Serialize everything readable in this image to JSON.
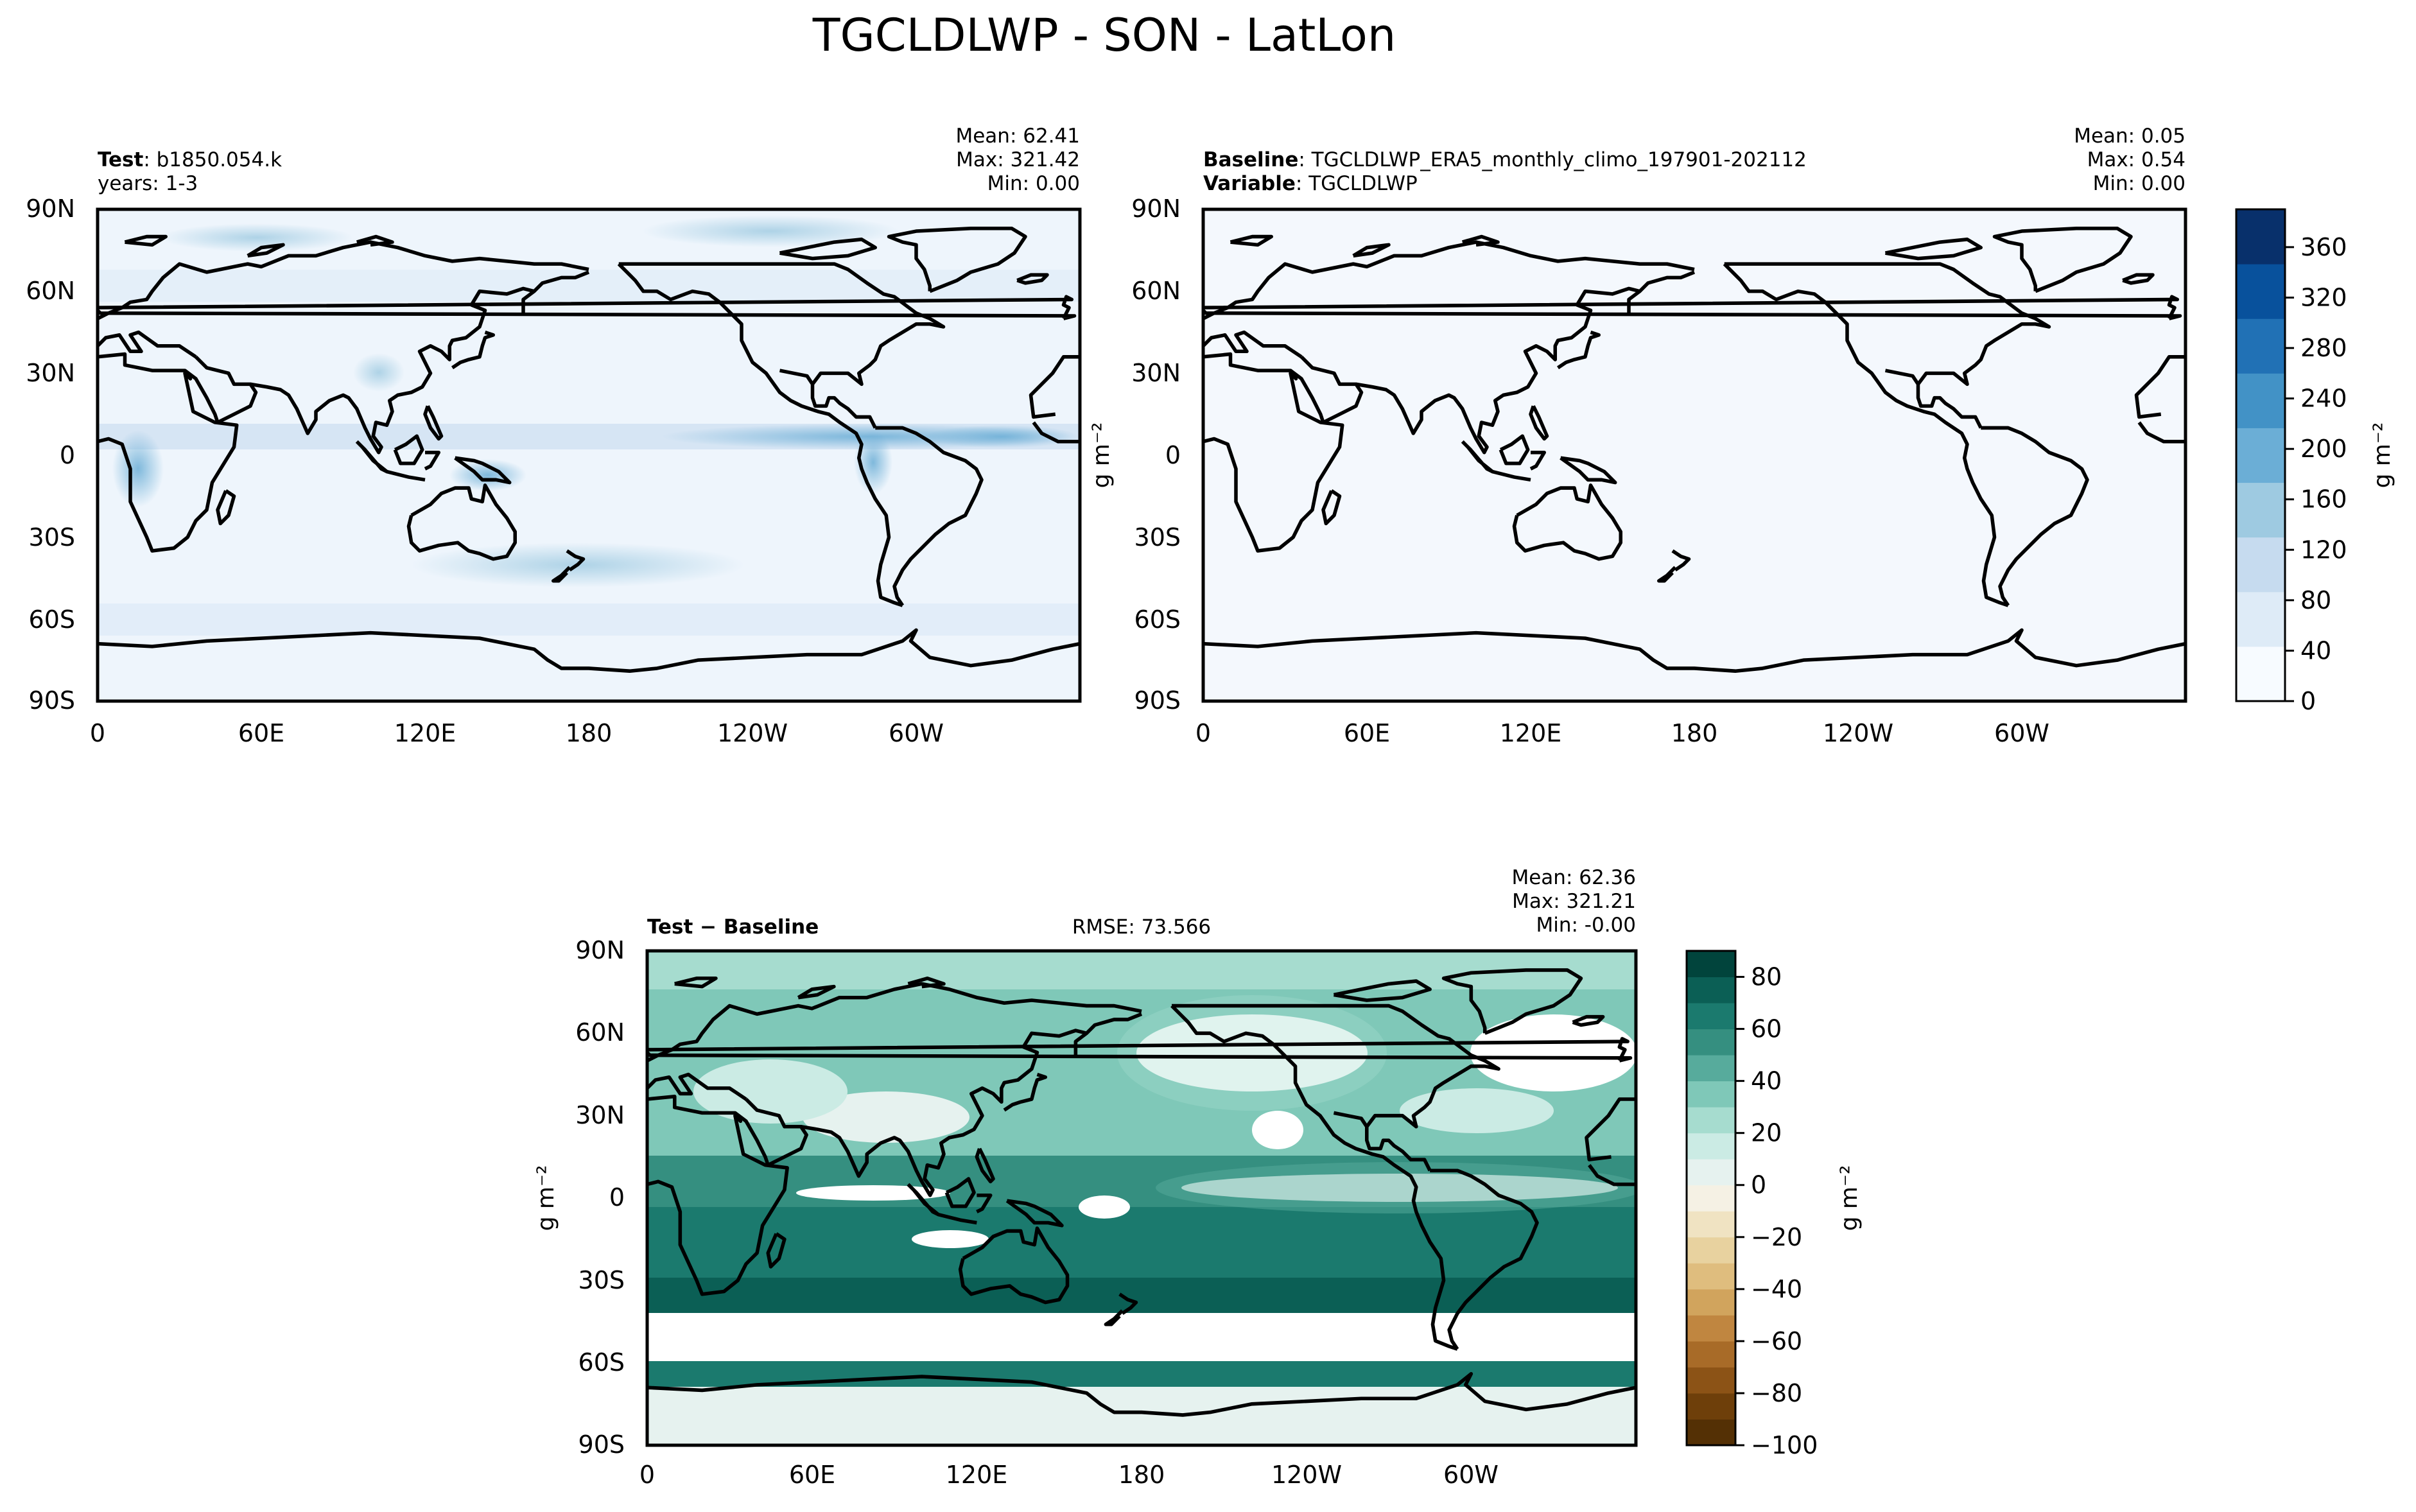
{
  "figure": {
    "title": "TGCLDLWP - SON - LatLon"
  },
  "lat_ticks": [
    "90N",
    "60N",
    "30N",
    "0",
    "30S",
    "60S",
    "90S"
  ],
  "lon_ticks": [
    "0",
    "60E",
    "120E",
    "180",
    "120W",
    "60W"
  ],
  "panels": {
    "test": {
      "label_bold": "Test",
      "label_text": ": b1850.054.k",
      "line2": "years: 1-3",
      "stats": {
        "mean": "Mean: 62.41",
        "max": "Max: 321.42",
        "min": "Min:  0.00"
      }
    },
    "baseline": {
      "label_bold": "Baseline",
      "label_text": ": TGCLDLWP_ERA5_monthly_climo_197901-202112",
      "line2_bold": "Variable",
      "line2_text": ": TGCLDLWP",
      "stats": {
        "mean": "Mean:  0.05",
        "max": "Max:  0.54",
        "min": "Min:  0.00"
      },
      "units": "g m⁻²"
    },
    "diff": {
      "label_bold": "Test − Baseline",
      "rmse": "RMSE: 73.566",
      "stats": {
        "mean": "Mean: 62.36",
        "max": "Max: 321.21",
        "min": "Min: -0.00"
      },
      "units": "g m⁻²"
    }
  },
  "colorbar_top": {
    "ticks": [
      0,
      40,
      80,
      120,
      160,
      200,
      240,
      280,
      320,
      360
    ],
    "range": [
      0,
      390
    ],
    "units": "g m⁻²",
    "colormap": "Blues",
    "colors": [
      "#f7fbff",
      "#deebf7",
      "#c6dbef",
      "#9ecae1",
      "#6baed6",
      "#4292c6",
      "#2171b5",
      "#08519c",
      "#08306b"
    ]
  },
  "colorbar_diff": {
    "ticks": [
      80,
      60,
      40,
      20,
      0,
      -20,
      -40,
      -60,
      -80,
      -100
    ],
    "range": [
      -100,
      90
    ],
    "units": "g m⁻²",
    "colormap": "BrBG",
    "colors": [
      "#01443c",
      "#0b5f55",
      "#1b7a6e",
      "#358f80",
      "#57ab9c",
      "#7fc8b8",
      "#a6dccf",
      "#cbebe4",
      "#e6f2ef",
      "#f5f1e4",
      "#f0e3c2",
      "#e8d29f",
      "#dfbd7e",
      "#d1a45d",
      "#c08640",
      "#a86b28",
      "#8c5316",
      "#6e3f0a",
      "#543005"
    ]
  },
  "chart_data": [
    {
      "type": "heatmap",
      "title": "Test: b1850.054.k",
      "xlabel": "",
      "ylabel": "",
      "xlim": [
        0,
        360
      ],
      "ylim": [
        -90,
        90
      ],
      "colorbar_range": [
        0,
        390
      ],
      "stats": {
        "mean": 62.41,
        "max": 321.42,
        "min": 0.0
      }
    },
    {
      "type": "heatmap",
      "title": "Baseline: TGCLDLWP_ERA5_monthly_climo_197901-202112",
      "xlabel": "",
      "ylabel": "g m⁻²",
      "xlim": [
        0,
        360
      ],
      "ylim": [
        -90,
        90
      ],
      "colorbar_range": [
        0,
        390
      ],
      "stats": {
        "mean": 0.05,
        "max": 0.54,
        "min": 0.0
      }
    },
    {
      "type": "heatmap",
      "title": "Test − Baseline",
      "xlabel": "",
      "ylabel": "g m⁻²",
      "xlim": [
        0,
        360
      ],
      "ylim": [
        -90,
        90
      ],
      "colorbar_range": [
        -100,
        90
      ],
      "rmse": 73.566,
      "stats": {
        "mean": 62.36,
        "max": 321.21,
        "min": -0.0
      }
    }
  ]
}
